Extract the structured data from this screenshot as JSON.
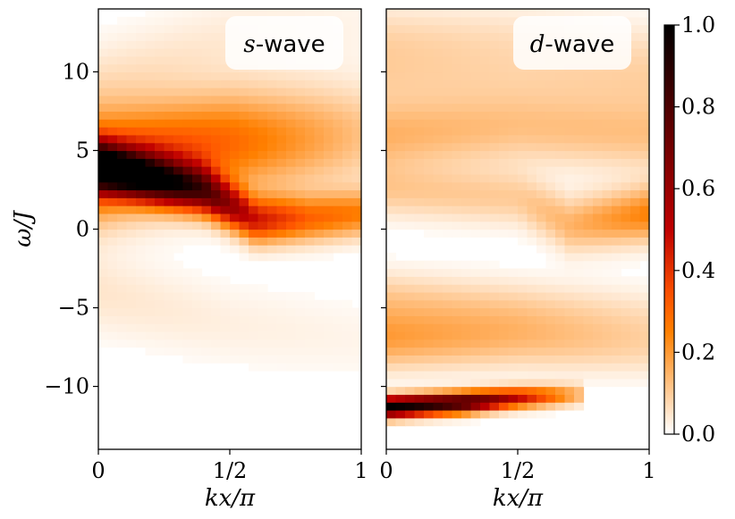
{
  "chart_data": {
    "type": "heatmap",
    "colormap": "gist_heat_r",
    "colors": {
      "low": "#ffffff",
      "mid": "#ff8000",
      "high": "#000000"
    },
    "colorbar": {
      "range": [
        0.0,
        1.0
      ],
      "ticks": [
        0.0,
        0.2,
        0.4,
        0.6,
        0.8,
        1.0
      ],
      "tick_labels": [
        "0.0",
        "0.2",
        "0.4",
        "0.6",
        "0.8",
        "1.0"
      ]
    },
    "shared_ylabel": "ω/J",
    "panels": [
      {
        "label_var": "s",
        "label_rest": "-wave",
        "xlabel": "kx/π",
        "xlim": [
          0,
          1
        ],
        "ylim": [
          -14,
          14
        ],
        "x_ticks": [
          0,
          0.5,
          1
        ],
        "x_tick_labels": [
          "0",
          "1/2",
          "1"
        ],
        "y_ticks": [
          -10,
          -5,
          0,
          5,
          10
        ],
        "y_tick_labels": [
          "−10",
          "−5",
          "0",
          "5",
          "10"
        ],
        "features": [
          {
            "kind": "branch",
            "points": [
              [
                0,
                4
              ],
              [
                0.4,
                2.5
              ],
              [
                0.6,
                0.6
              ],
              [
                0.8,
                0.7
              ],
              [
                1.0,
                1.0
              ]
            ],
            "amp": [
              1.0,
              0.7,
              0.45,
              0.3,
              0.25
            ],
            "width": 1.0
          },
          {
            "kind": "branch",
            "points": [
              [
                0,
                4
              ],
              [
                0.5,
                5.5
              ],
              [
                1.0,
                6
              ]
            ],
            "amp": [
              0.45,
              0.3,
              0.12
            ],
            "width": 2.2
          },
          {
            "kind": "branch",
            "points": [
              [
                0,
                9
              ],
              [
                0.5,
                12
              ],
              [
                1.0,
                13
              ]
            ],
            "amp": [
              0.06,
              0.04,
              0.02
            ],
            "width": 2.0
          },
          {
            "kind": "branch",
            "points": [
              [
                0,
                -4
              ],
              [
                0.5,
                -6
              ],
              [
                1.0,
                -7
              ]
            ],
            "amp": [
              0.05,
              0.03,
              0.02
            ],
            "width": 1.8
          }
        ]
      },
      {
        "label_var": "d",
        "label_rest": "-wave",
        "xlabel": "kx/π",
        "xlim": [
          0,
          1
        ],
        "ylim": [
          -14,
          14
        ],
        "x_ticks": [
          0,
          0.5,
          1
        ],
        "x_tick_labels": [
          "0",
          "1/2",
          "1"
        ],
        "y_ticks": [
          -10,
          -5,
          0,
          5,
          10
        ],
        "y_tick_labels": [
          "",
          "",
          "",
          "",
          ""
        ],
        "features": [
          {
            "kind": "branch",
            "points": [
              [
                0,
                -11.3
              ],
              [
                0.3,
                -11
              ],
              [
                0.5,
                -10.7
              ],
              [
                0.75,
                -10.5
              ]
            ],
            "amp": [
              1.0,
              0.85,
              0.5,
              0.12
            ],
            "width": 0.45
          },
          {
            "kind": "branch",
            "points": [
              [
                0,
                -7
              ],
              [
                0.5,
                -7
              ],
              [
                1.0,
                -7.5
              ]
            ],
            "amp": [
              0.18,
              0.12,
              0.07
            ],
            "width": 1.3
          },
          {
            "kind": "branch",
            "points": [
              [
                0,
                -4.5
              ],
              [
                0.5,
                -5
              ],
              [
                1.0,
                -5.5
              ]
            ],
            "amp": [
              0.1,
              0.08,
              0.05
            ],
            "width": 1.3
          },
          {
            "kind": "branch",
            "points": [
              [
                0,
                6
              ],
              [
                0.5,
                6.5
              ],
              [
                1.0,
                6
              ]
            ],
            "amp": [
              0.15,
              0.12,
              0.12
            ],
            "width": 1.6
          },
          {
            "kind": "branch",
            "points": [
              [
                0,
                2.5
              ],
              [
                0.5,
                2
              ],
              [
                0.7,
                0.3
              ],
              [
                1.0,
                1.0
              ]
            ],
            "amp": [
              0.1,
              0.1,
              0.15,
              0.25
            ],
            "width": 1.2
          },
          {
            "kind": "branch",
            "points": [
              [
                0,
                12
              ],
              [
                0.5,
                12
              ],
              [
                1.0,
                11
              ]
            ],
            "amp": [
              0.08,
              0.06,
              0.06
            ],
            "width": 1.6
          },
          {
            "kind": "branch",
            "points": [
              [
                0,
                9.5
              ],
              [
                0.5,
                9.5
              ],
              [
                1.0,
                9
              ]
            ],
            "amp": [
              0.06,
              0.05,
              0.05
            ],
            "width": 1.4
          }
        ]
      }
    ]
  }
}
